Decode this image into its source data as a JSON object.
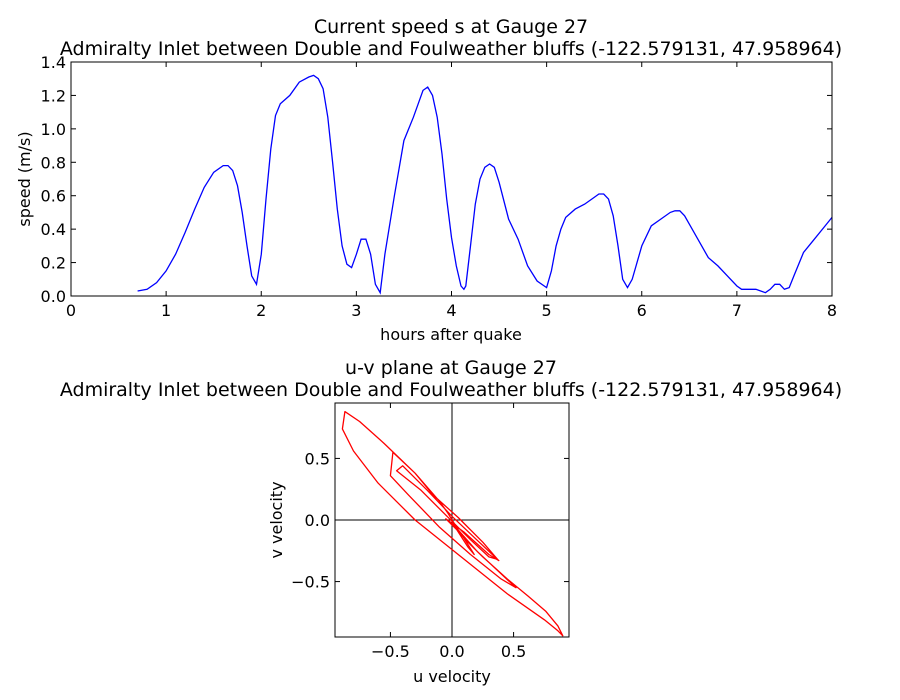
{
  "chart_data": [
    {
      "type": "line",
      "title_line1": "Current speed s at Gauge 27",
      "title_line2": "Admiralty Inlet between Double and Foulweather bluffs  (-122.579131, 47.958964)",
      "xlabel": "hours after quake",
      "ylabel": "speed (m/s)",
      "xlim": [
        0,
        8
      ],
      "ylim": [
        0,
        1.4
      ],
      "xticks": [
        0,
        1,
        2,
        3,
        4,
        5,
        6,
        7,
        8
      ],
      "xtick_labels": [
        "0",
        "1",
        "2",
        "3",
        "4",
        "5",
        "6",
        "7",
        "8"
      ],
      "yticks": [
        0.0,
        0.2,
        0.4,
        0.6,
        0.8,
        1.0,
        1.2,
        1.4
      ],
      "ytick_labels": [
        "0.0",
        "0.2",
        "0.4",
        "0.6",
        "0.8",
        "1.0",
        "1.2",
        "1.4"
      ],
      "grid": false,
      "series": [
        {
          "color": "#0000ff",
          "x": [
            0.7,
            0.8,
            0.9,
            1.0,
            1.1,
            1.2,
            1.3,
            1.4,
            1.5,
            1.6,
            1.65,
            1.7,
            1.75,
            1.8,
            1.85,
            1.9,
            1.95,
            2.0,
            2.05,
            2.1,
            2.15,
            2.2,
            2.3,
            2.4,
            2.5,
            2.55,
            2.6,
            2.65,
            2.7,
            2.75,
            2.8,
            2.85,
            2.9,
            2.95,
            3.0,
            3.05,
            3.1,
            3.15,
            3.2,
            3.25,
            3.3,
            3.4,
            3.5,
            3.6,
            3.65,
            3.7,
            3.75,
            3.8,
            3.85,
            3.9,
            3.95,
            4.0,
            4.05,
            4.1,
            4.13,
            4.15,
            4.2,
            4.25,
            4.3,
            4.35,
            4.4,
            4.45,
            4.5,
            4.6,
            4.7,
            4.8,
            4.9,
            5.0,
            5.05,
            5.1,
            5.15,
            5.2,
            5.3,
            5.4,
            5.5,
            5.55,
            5.6,
            5.65,
            5.7,
            5.75,
            5.8,
            5.85,
            5.9,
            5.95,
            6.0,
            6.1,
            6.2,
            6.3,
            6.35,
            6.4,
            6.45,
            6.5,
            6.6,
            6.7,
            6.8,
            6.9,
            7.0,
            7.05,
            7.1,
            7.2,
            7.3,
            7.35,
            7.4,
            7.45,
            7.5,
            7.55,
            7.6,
            7.7,
            7.8,
            7.9,
            8.0
          ],
          "y": [
            0.03,
            0.04,
            0.08,
            0.15,
            0.25,
            0.38,
            0.52,
            0.65,
            0.74,
            0.78,
            0.78,
            0.75,
            0.66,
            0.5,
            0.3,
            0.12,
            0.07,
            0.25,
            0.58,
            0.88,
            1.08,
            1.15,
            1.2,
            1.28,
            1.31,
            1.32,
            1.3,
            1.24,
            1.07,
            0.8,
            0.52,
            0.3,
            0.19,
            0.17,
            0.25,
            0.34,
            0.34,
            0.25,
            0.07,
            0.02,
            0.25,
            0.6,
            0.93,
            1.07,
            1.15,
            1.23,
            1.25,
            1.2,
            1.07,
            0.85,
            0.58,
            0.35,
            0.18,
            0.06,
            0.04,
            0.06,
            0.3,
            0.55,
            0.7,
            0.77,
            0.79,
            0.77,
            0.68,
            0.46,
            0.34,
            0.18,
            0.09,
            0.05,
            0.15,
            0.3,
            0.4,
            0.47,
            0.52,
            0.55,
            0.59,
            0.61,
            0.61,
            0.58,
            0.48,
            0.3,
            0.1,
            0.05,
            0.1,
            0.2,
            0.3,
            0.42,
            0.46,
            0.5,
            0.51,
            0.51,
            0.48,
            0.43,
            0.33,
            0.23,
            0.18,
            0.12,
            0.06,
            0.04,
            0.04,
            0.04,
            0.02,
            0.04,
            0.07,
            0.07,
            0.04,
            0.05,
            0.12,
            0.26,
            0.33,
            0.4,
            0.47
          ]
        }
      ]
    },
    {
      "type": "line",
      "title_line1": "u-v plane at Gauge 27",
      "title_line2": "Admiralty Inlet between Double and Foulweather bluffs  (-122.579131, 47.958964)",
      "xlabel": "u velocity",
      "ylabel": "v velocity",
      "xlim": [
        -0.95,
        0.95
      ],
      "ylim": [
        -0.95,
        0.95
      ],
      "xticks": [
        -0.5,
        0.0,
        0.5
      ],
      "xtick_labels": [
        "−0.5",
        "0.0",
        "0.5"
      ],
      "yticks": [
        -0.5,
        0.0,
        0.5
      ],
      "ytick_labels": [
        "−0.5",
        "0.0",
        "0.5"
      ],
      "zero_lines": true,
      "grid": false,
      "series": [
        {
          "color": "#ff0000",
          "x": [
            -0.02,
            0.03,
            0.1,
            0.25,
            0.45,
            0.62,
            0.76,
            0.86,
            0.9,
            0.86,
            0.75,
            0.45,
            0.1,
            -0.3,
            -0.6,
            -0.8,
            -0.89,
            -0.87,
            -0.75,
            -0.55,
            -0.3,
            -0.1,
            -0.03,
            0.05,
            0.2,
            0.38,
            0.52,
            0.4,
            0.15,
            -0.1,
            -0.35,
            -0.5,
            -0.48,
            -0.3,
            -0.15,
            0.05,
            0.25,
            0.37,
            0.3,
            0.15,
            -0.05,
            -0.25,
            -0.45,
            -0.4,
            -0.2,
            0.0,
            0.2,
            0.38,
            0.3,
            0.1,
            -0.05,
            0.08,
            0.18,
            0.13,
            0.02
          ],
          "y": [
            -0.02,
            -0.06,
            -0.15,
            -0.3,
            -0.48,
            -0.62,
            -0.74,
            -0.86,
            -0.94,
            -0.9,
            -0.81,
            -0.6,
            -0.32,
            0.0,
            0.3,
            0.56,
            0.74,
            0.88,
            0.8,
            0.62,
            0.38,
            0.15,
            0.05,
            -0.08,
            -0.25,
            -0.42,
            -0.55,
            -0.48,
            -0.28,
            -0.06,
            0.2,
            0.36,
            0.55,
            0.38,
            0.2,
            0.02,
            -0.18,
            -0.32,
            -0.3,
            -0.16,
            0.04,
            0.24,
            0.4,
            0.44,
            0.24,
            0.03,
            -0.16,
            -0.33,
            -0.28,
            -0.1,
            0.01,
            -0.12,
            -0.28,
            -0.22,
            -0.05
          ]
        }
      ]
    }
  ]
}
